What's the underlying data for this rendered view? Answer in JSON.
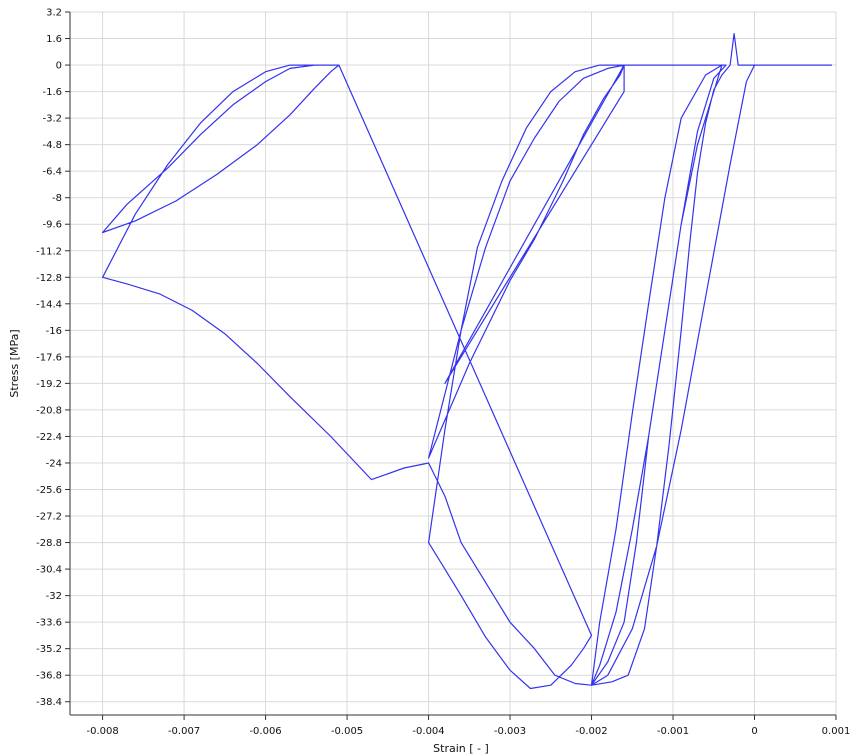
{
  "chart_data": {
    "type": "line",
    "title": "",
    "xlabel": "Strain [ - ]",
    "ylabel": "Stress [MPa]",
    "xlim": [
      -0.0084,
      0.001
    ],
    "ylim": [
      -39.2,
      3.2
    ],
    "x_ticks": [
      -0.008,
      -0.007,
      -0.006,
      -0.005,
      -0.004,
      -0.003,
      -0.002,
      -0.001,
      0,
      0.001
    ],
    "x_tick_labels": [
      "-0.008",
      "-0.007",
      "-0.006",
      "-0.005",
      "-0.004",
      "-0.003",
      "-0.002",
      "-0.001",
      "0",
      "0.001"
    ],
    "y_ticks": [
      3.2,
      1.6,
      0,
      -1.6,
      -3.2,
      -4.8,
      -6.4,
      -8,
      -9.6,
      -11.2,
      -12.8,
      -14.4,
      -16,
      -17.6,
      -19.2,
      -20.8,
      -22.4,
      -24,
      -25.6,
      -27.2,
      -28.8,
      -30.4,
      -32,
      -33.6,
      -35.2,
      -36.8,
      -38.4
    ],
    "y_tick_labels": [
      "3.2",
      "1.6",
      "0",
      "-1.6",
      "-3.2",
      "-4.8",
      "-6.4",
      "-8",
      "-9.6",
      "-11.2",
      "-12.8",
      "-14.4",
      "-16",
      "-17.6",
      "-19.2",
      "-20.8",
      "-22.4",
      "-24",
      "-25.6",
      "-27.2",
      "-28.8",
      "-30.4",
      "-32",
      "-33.6",
      "-35.2",
      "-36.8",
      "-38.4"
    ],
    "grid": true,
    "legend": "none",
    "line_color": "#3333ee",
    "series": [
      {
        "x": [
          0.00095,
          0.0,
          -0.0002,
          -0.00025,
          -0.0003,
          -0.0004,
          -0.0005,
          -0.0006,
          -0.0007,
          -0.0008,
          -0.0009,
          -0.00105,
          -0.0012,
          -0.00135,
          -0.00155,
          -0.00175,
          -0.002,
          -0.0022,
          -0.00245,
          -0.0027,
          -0.003,
          -0.0033,
          -0.0036,
          -0.0038,
          -0.004,
          -0.0043,
          -0.0047,
          -0.0052,
          -0.0057,
          -0.0061,
          -0.0065,
          -0.0069,
          -0.0073,
          -0.0077,
          -0.008,
          -0.0076,
          -0.0072,
          -0.0068,
          -0.0064,
          -0.006,
          -0.0057,
          -0.0055,
          -0.0053,
          -0.0052,
          -0.0051,
          -0.0051,
          -0.0052,
          -0.0054,
          -0.0057,
          -0.0061,
          -0.0066,
          -0.0071,
          -0.0076,
          -0.008,
          -0.0077,
          -0.0072,
          -0.0068,
          -0.0064,
          -0.006,
          -0.0057,
          -0.0054,
          -0.0052,
          -0.0051,
          -0.002,
          -0.0021,
          -0.00225,
          -0.0025,
          -0.00275,
          -0.003,
          -0.0033,
          -0.0036,
          -0.0038,
          -0.004,
          -0.0038,
          -0.0036,
          -0.0034,
          -0.0031,
          -0.0028,
          -0.0025,
          -0.0022,
          -0.0019,
          -0.0016,
          -0.0038,
          -0.0034,
          -0.003,
          -0.0026,
          -0.0022,
          -0.0018,
          -0.0016,
          -0.0016,
          -0.0018,
          -0.0021,
          -0.0024,
          -0.0027,
          -0.003,
          -0.0033,
          -0.0036,
          -0.004,
          -0.0035,
          -0.003,
          -0.0027,
          -0.00235,
          -0.0021,
          -0.00185,
          -0.00165,
          -0.0016,
          -0.0004,
          -0.0005,
          -0.0007,
          -0.0009,
          -0.0011,
          -0.0013,
          -0.00145,
          -0.0016,
          -0.0018,
          -0.002,
          -0.0019,
          -0.0017,
          -0.0015,
          -0.0013,
          -0.0011,
          -0.0009,
          -0.0006,
          -0.0004,
          -0.00035,
          -0.0005,
          -0.0007,
          -0.0009,
          -0.0011,
          -0.0013,
          -0.0015,
          -0.0017,
          -0.0019,
          -0.002,
          -0.0018,
          -0.0015,
          -0.0012,
          -0.0009,
          -0.0006,
          -0.0003,
          -0.0001,
          0.0,
          0.0
        ],
        "y": [
          0,
          0,
          0,
          1.9,
          0,
          -0.6,
          -1.5,
          -3.5,
          -6.5,
          -11,
          -16,
          -23,
          -29,
          -34,
          -36.8,
          -37.2,
          -37.4,
          -37.3,
          -36.8,
          -35.2,
          -33.6,
          -31.2,
          -28.8,
          -26,
          -24.0,
          -24.3,
          -25.0,
          -22.4,
          -20.0,
          -18.0,
          -16.2,
          -14.8,
          -13.8,
          -13.2,
          -12.8,
          -9.0,
          -6.0,
          -3.5,
          -1.6,
          -0.4,
          0,
          0,
          0,
          0,
          0,
          0,
          -0.4,
          -1.4,
          -3.0,
          -4.8,
          -6.6,
          -8.2,
          -9.4,
          -10.1,
          -8.4,
          -6.2,
          -4.2,
          -2.4,
          -1.0,
          -0.2,
          0,
          0,
          0,
          -34.4,
          -35.2,
          -36.2,
          -37.4,
          -37.6,
          -36.5,
          -34.5,
          -32.0,
          -30.4,
          -28.8,
          -22.0,
          -16.0,
          -11.0,
          -7.0,
          -3.8,
          -1.6,
          -0.4,
          0,
          0,
          -19.2,
          -16.0,
          -12.8,
          -9.6,
          -6.4,
          -3.2,
          -1.6,
          0,
          -0.2,
          -0.8,
          -2.2,
          -4.4,
          -7.0,
          -11.0,
          -16.0,
          -23.7,
          -18.0,
          -13.0,
          -10.5,
          -7.0,
          -4.2,
          -2.0,
          -0.6,
          0,
          0,
          -1.6,
          -4.8,
          -9.6,
          -16.0,
          -22.4,
          -28.8,
          -33.6,
          -36.0,
          -37.4,
          -33.6,
          -28.0,
          -21.0,
          -14.4,
          -8.0,
          -3.2,
          -0.6,
          0,
          0,
          -0.8,
          -4.0,
          -9.6,
          -16.0,
          -22.4,
          -28.0,
          -33.0,
          -36.2,
          -37.4,
          -36.8,
          -34.0,
          -29.0,
          -22.0,
          -14.0,
          -6.0,
          -1.0,
          0,
          0
        ]
      }
    ]
  }
}
